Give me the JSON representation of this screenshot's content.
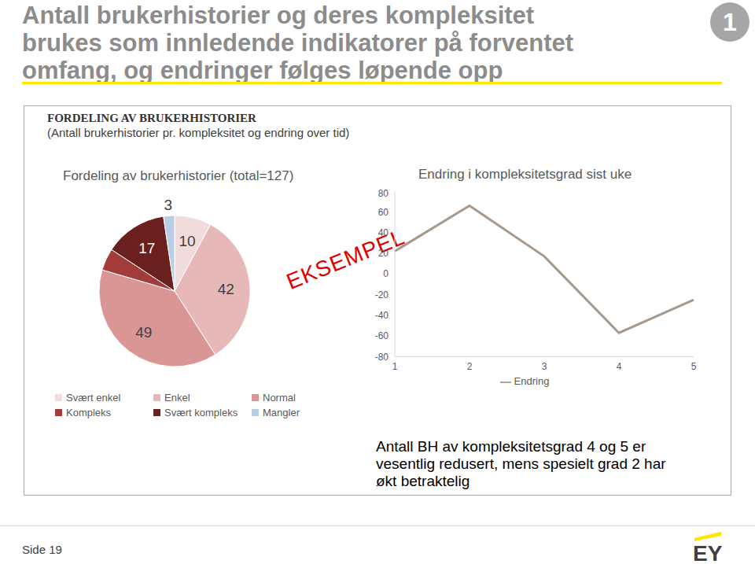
{
  "title_lines": [
    "Antall brukerhistorier og deres kompleksitet",
    "brukes som innledende indikatorer på forventet",
    "omfang, og endringer følges løpende opp"
  ],
  "badge": "1",
  "section": {
    "heading": "FORDELING AV BRUKERHISTORIER",
    "subheading": "(Antall brukerhistorier pr. kompleksitet og endring over tid)"
  },
  "watermark": "EKSEMPEL",
  "footer": {
    "page": "Side 19",
    "logo": "EY"
  },
  "chart_data": [
    {
      "type": "pie",
      "title": "Fordeling av brukerhistorier (total=127)",
      "categories": [
        "Svært enkel",
        "Enkel",
        "Normal",
        "Kompleks",
        "Svært kompleks",
        "Mangler"
      ],
      "values": [
        10,
        42,
        49,
        6,
        17,
        3
      ],
      "colors": [
        "#f2dcdb",
        "#e6b9b8",
        "#d99694",
        "#a33b3b",
        "#6b2020",
        "#b9cde5"
      ],
      "data_labels": true,
      "value_labels": [
        "10",
        "42",
        "49",
        null,
        "17",
        "3"
      ],
      "legend": "bottom"
    },
    {
      "type": "line",
      "title": "Endring i kompleksitetsgrad sist uke",
      "categories": [
        "1",
        "2",
        "3",
        "4",
        "5"
      ],
      "series": [
        {
          "name": "Endring",
          "color": "#a6988c",
          "values": [
            22,
            66,
            17,
            -57,
            -25
          ]
        }
      ],
      "ylim": [
        -80,
        80
      ],
      "yticks": [
        -80,
        -60,
        -40,
        -20,
        0,
        20,
        40,
        60,
        80
      ],
      "grid": false,
      "marker": "none",
      "legend": "bottom",
      "annotation": "Antall BH av kompleksitetsgrad 4 og 5 er vesentlig redusert, mens spesielt grad 2 har økt betraktelig"
    }
  ]
}
